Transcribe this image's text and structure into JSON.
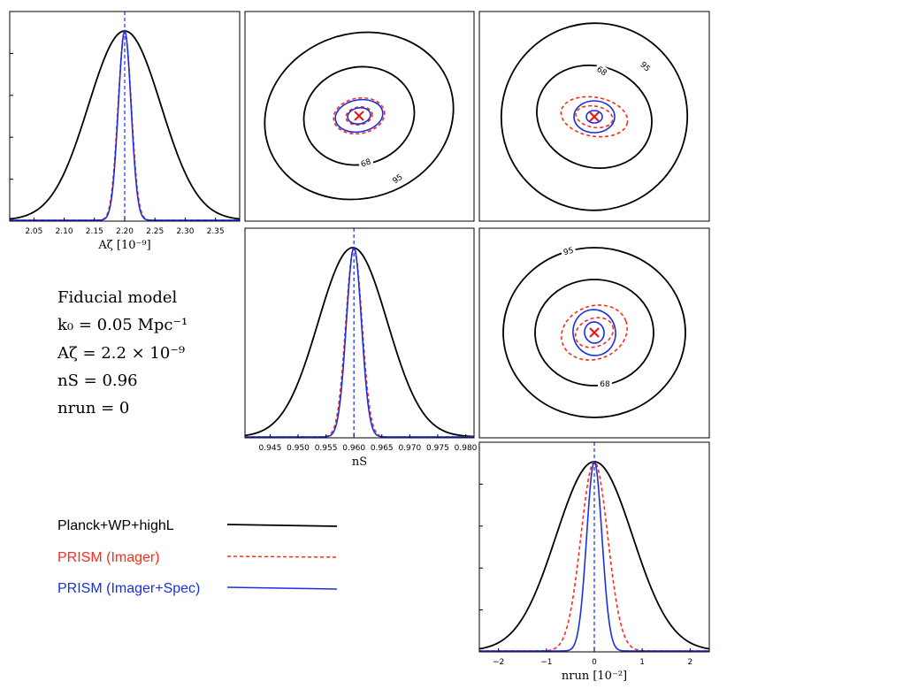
{
  "colors": {
    "planck": "#000000",
    "imager": "#ff2a1a",
    "imager_spec": "#1a2fe0",
    "fiducial_marker": "#ee1111"
  },
  "fiducial": {
    "heading": "Fiducial model",
    "lines": [
      "k₀ = 0.05 Mpc⁻¹",
      "Aζ = 2.2 × 10⁻⁹",
      "nS = 0.96",
      "nrun = 0"
    ]
  },
  "legend": [
    {
      "label": "Planck+WP+highL",
      "color": "#000000",
      "dash": "solid"
    },
    {
      "label": "PRISM (Imager)",
      "color": "#ff2a1a",
      "dash": "dashed"
    },
    {
      "label": "PRISM (Imager+Spec)",
      "color": "#1a2fe0",
      "dash": "solid"
    }
  ],
  "contour_levels": [
    "68",
    "95"
  ],
  "chart_data": [
    {
      "type": "line",
      "panel": "A_zeta marginal",
      "xlabel": "Aζ [10⁻⁹]",
      "xlim": [
        2.01,
        2.39
      ],
      "xticks": [
        2.05,
        2.1,
        2.15,
        2.2,
        2.25,
        2.3,
        2.35
      ],
      "fiducial": 2.2,
      "series": [
        {
          "name": "Planck+WP+highL",
          "mean": 2.2,
          "sigma": 0.06
        },
        {
          "name": "PRISM (Imager)",
          "mean": 2.2,
          "sigma": 0.011
        },
        {
          "name": "PRISM (Imager+Spec)",
          "mean": 2.2,
          "sigma": 0.0105
        }
      ]
    },
    {
      "type": "line",
      "panel": "n_S marginal",
      "xlabel": "nS",
      "xlim": [
        0.9405,
        0.9815
      ],
      "xticks": [
        0.945,
        0.95,
        0.955,
        0.96,
        0.965,
        0.97,
        0.975,
        0.98
      ],
      "fiducial": 0.96,
      "series": [
        {
          "name": "Planck+WP+highL",
          "mean": 0.9598,
          "sigma": 0.0062
        },
        {
          "name": "PRISM (Imager)",
          "mean": 0.96,
          "sigma": 0.00145
        },
        {
          "name": "PRISM (Imager+Spec)",
          "mean": 0.96,
          "sigma": 0.00135
        }
      ]
    },
    {
      "type": "line",
      "panel": "n_run marginal",
      "xlabel": "nrun [10⁻²]",
      "xlim": [
        -2.4,
        2.4
      ],
      "xticks": [
        -2,
        -1,
        0,
        1,
        2
      ],
      "fiducial": 0,
      "series": [
        {
          "name": "Planck+WP+highL",
          "mean": 0.0,
          "sigma": 0.8
        },
        {
          "name": "PRISM (Imager)",
          "mean": 0.0,
          "sigma": 0.28
        },
        {
          "name": "PRISM (Imager+Spec)",
          "mean": 0.0,
          "sigma": 0.16
        }
      ]
    }
  ]
}
